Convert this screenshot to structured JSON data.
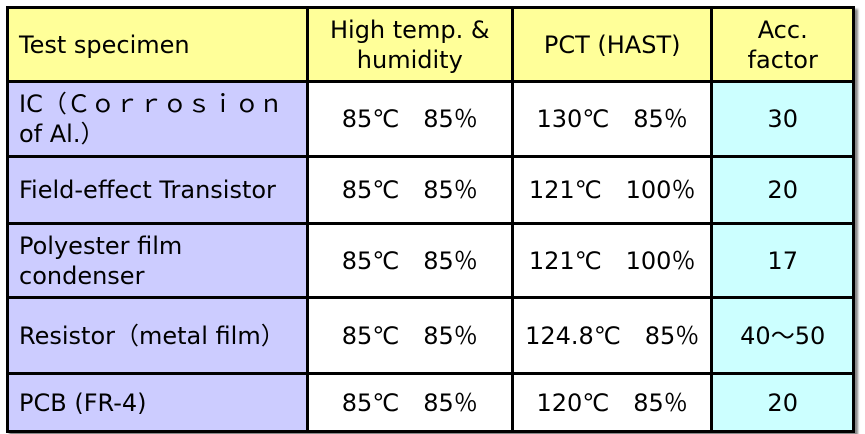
{
  "table": {
    "header": [
      "Test specimen",
      "High temp. & humidity",
      "PCT (HAST)",
      "Acc. factor"
    ],
    "rows": [
      [
        "IC（Ｃｏｒｒｏｓｉｏｎ of Al.）",
        "85℃　85％",
        "130℃　85％",
        "30"
      ],
      [
        "Field-effect Transistor",
        "85℃　85％",
        "121℃　100％",
        "20"
      ],
      [
        "Polyester film condenser",
        "85℃　85％",
        "121℃　100％",
        "17"
      ],
      [
        "Resistor（metal film）",
        "85℃　85％",
        "124.8℃　85％",
        "40～50"
      ],
      [
        "PCB (FR-4)",
        "85℃　85％",
        "120℃　85％",
        "20"
      ]
    ]
  }
}
